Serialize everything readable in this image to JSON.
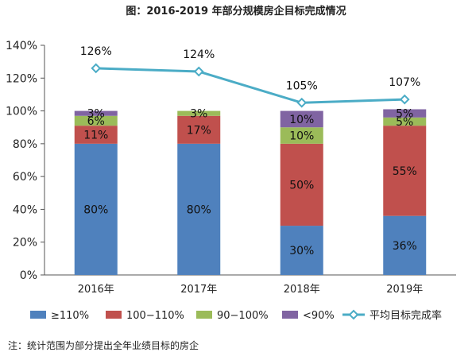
{
  "chart_data": {
    "type": "bar",
    "title": "图：2016-2019 年部分规模房企目标完成情况",
    "note": "注：统计范围为部分提出全年业绩目标的房企",
    "categories": [
      "2016年",
      "2017年",
      "2018年",
      "2019年"
    ],
    "ylim": [
      0,
      140
    ],
    "y_ticks": [
      0,
      20,
      40,
      60,
      80,
      100,
      120,
      140
    ],
    "y_tick_labels": [
      "0%",
      "20%",
      "40%",
      "60%",
      "80%",
      "100%",
      "120%",
      "140%"
    ],
    "stacked": true,
    "series": [
      {
        "name": "≥110%",
        "color": "#4f81bd",
        "values": [
          80,
          80,
          30,
          36
        ],
        "labels": [
          "80%",
          "80%",
          "30%",
          "36%"
        ]
      },
      {
        "name": "100−110%",
        "color": "#c0504d",
        "values": [
          11,
          17,
          50,
          55
        ],
        "labels": [
          "11%",
          "17%",
          "50%",
          "55%"
        ]
      },
      {
        "name": "90−100%",
        "color": "#9bbb59",
        "values": [
          6,
          3,
          10,
          5
        ],
        "labels": [
          "6%",
          "3%",
          "10%",
          "5%"
        ]
      },
      {
        "name": "<90%",
        "color": "#8064a2",
        "values": [
          3,
          0,
          10,
          5
        ],
        "labels": [
          "3%",
          "",
          "10%",
          "5%"
        ]
      }
    ],
    "line_series": {
      "name": "平均目标完成率",
      "color": "#4bacc6",
      "values": [
        126,
        124,
        105,
        107
      ],
      "labels": [
        "126%",
        "124%",
        "105%",
        "107%"
      ]
    },
    "grid": false,
    "legend_position": "bottom"
  }
}
